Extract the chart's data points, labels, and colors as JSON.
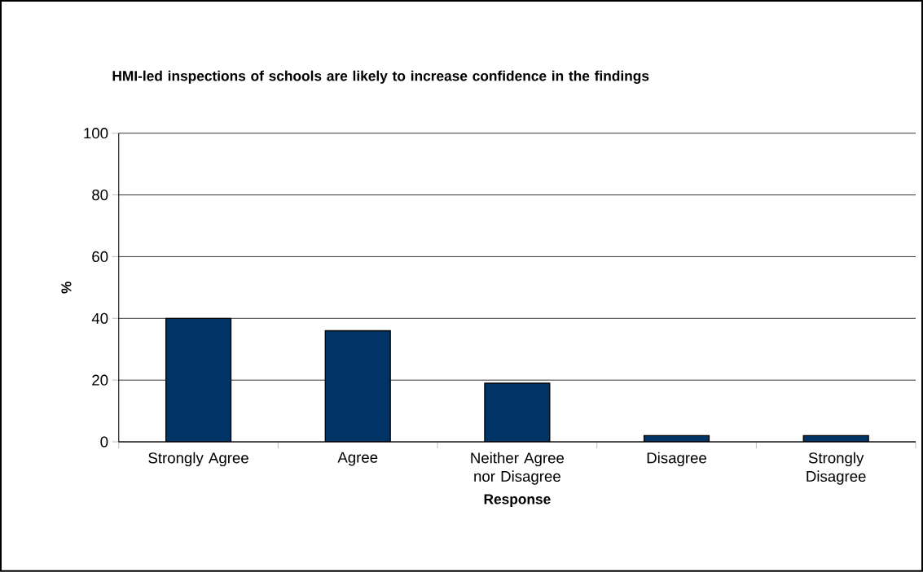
{
  "chart_data": {
    "type": "bar",
    "title": "HMI-led inspections of schools are likely to increase confidence in the findings",
    "xlabel": "Response",
    "ylabel": "%",
    "categories": [
      "Strongly Agree",
      "Agree",
      "Neither Agree nor Disagree",
      "Disagree",
      "Strongly Disagree"
    ],
    "values": [
      40,
      36,
      19,
      2,
      2
    ],
    "color": "#003366",
    "ylim": [
      0,
      100
    ],
    "yticks": [
      0,
      20,
      40,
      60,
      80,
      100
    ],
    "grid": "y"
  }
}
